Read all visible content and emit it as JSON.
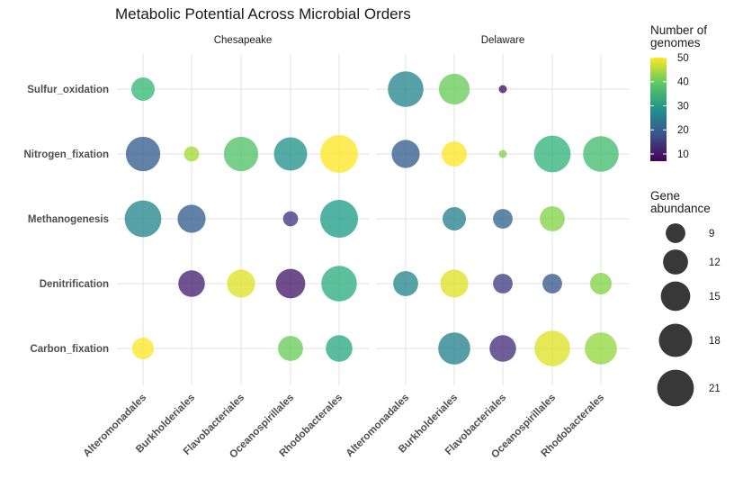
{
  "chart_data": {
    "type": "scatter",
    "title": "Metabolic Potential Across Microbial Orders",
    "facets": [
      "Chesapeake",
      "Delaware"
    ],
    "orders": [
      "Alteromonadales",
      "Burkholderiales",
      "Flavobacteriales",
      "Oceanospirillales",
      "Rhodobacterales"
    ],
    "pathways": [
      "Sulfur_oxidation",
      "Nitrogen_fixation",
      "Methanogenesis",
      "Denitrification",
      "Carbon_fixation"
    ],
    "points": [
      {
        "facet": "Chesapeake",
        "order": "Alteromonadales",
        "pathway": "Sulfur_oxidation",
        "genomes": 36,
        "abundance": 11
      },
      {
        "facet": "Chesapeake",
        "order": "Alteromonadales",
        "pathway": "Nitrogen_fixation",
        "genomes": 20,
        "abundance": 19
      },
      {
        "facet": "Chesapeake",
        "order": "Alteromonadales",
        "pathway": "Methanogenesis",
        "genomes": 27,
        "abundance": 21
      },
      {
        "facet": "Chesapeake",
        "order": "Alteromonadales",
        "pathway": "Carbon_fixation",
        "genomes": 50,
        "abundance": 10
      },
      {
        "facet": "Chesapeake",
        "order": "Burkholderiales",
        "pathway": "Nitrogen_fixation",
        "genomes": 44,
        "abundance": 7
      },
      {
        "facet": "Chesapeake",
        "order": "Burkholderiales",
        "pathway": "Methanogenesis",
        "genomes": 20,
        "abundance": 14
      },
      {
        "facet": "Chesapeake",
        "order": "Burkholderiales",
        "pathway": "Denitrification",
        "genomes": 11,
        "abundance": 13
      },
      {
        "facet": "Chesapeake",
        "order": "Flavobacteriales",
        "pathway": "Nitrogen_fixation",
        "genomes": 38,
        "abundance": 19
      },
      {
        "facet": "Chesapeake",
        "order": "Flavobacteriales",
        "pathway": "Denitrification",
        "genomes": 48,
        "abundance": 14
      },
      {
        "facet": "Chesapeake",
        "order": "Oceanospirillales",
        "pathway": "Nitrogen_fixation",
        "genomes": 29,
        "abundance": 18
      },
      {
        "facet": "Chesapeake",
        "order": "Oceanospirillales",
        "pathway": "Methanogenesis",
        "genomes": 14,
        "abundance": 7
      },
      {
        "facet": "Chesapeake",
        "order": "Oceanospirillales",
        "pathway": "Denitrification",
        "genomes": 10,
        "abundance": 15
      },
      {
        "facet": "Chesapeake",
        "order": "Oceanospirillales",
        "pathway": "Carbon_fixation",
        "genomes": 40,
        "abundance": 12
      },
      {
        "facet": "Chesapeake",
        "order": "Rhodobacterales",
        "pathway": "Nitrogen_fixation",
        "genomes": 50,
        "abundance": 22
      },
      {
        "facet": "Chesapeake",
        "order": "Rhodobacterales",
        "pathway": "Methanogenesis",
        "genomes": 31,
        "abundance": 22
      },
      {
        "facet": "Chesapeake",
        "order": "Rhodobacterales",
        "pathway": "Denitrification",
        "genomes": 34,
        "abundance": 20
      },
      {
        "facet": "Chesapeake",
        "order": "Rhodobacterales",
        "pathway": "Carbon_fixation",
        "genomes": 33,
        "abundance": 13
      },
      {
        "facet": "Delaware",
        "order": "Alteromonadales",
        "pathway": "Sulfur_oxidation",
        "genomes": 27,
        "abundance": 20
      },
      {
        "facet": "Delaware",
        "order": "Alteromonadales",
        "pathway": "Nitrogen_fixation",
        "genomes": 20,
        "abundance": 14
      },
      {
        "facet": "Delaware",
        "order": "Alteromonadales",
        "pathway": "Denitrification",
        "genomes": 27,
        "abundance": 12
      },
      {
        "facet": "Delaware",
        "order": "Burkholderiales",
        "pathway": "Sulfur_oxidation",
        "genomes": 40,
        "abundance": 16
      },
      {
        "facet": "Delaware",
        "order": "Burkholderiales",
        "pathway": "Nitrogen_fixation",
        "genomes": 50,
        "abundance": 12
      },
      {
        "facet": "Delaware",
        "order": "Burkholderiales",
        "pathway": "Methanogenesis",
        "genomes": 26,
        "abundance": 11
      },
      {
        "facet": "Delaware",
        "order": "Burkholderiales",
        "pathway": "Denitrification",
        "genomes": 48,
        "abundance": 14
      },
      {
        "facet": "Delaware",
        "order": "Burkholderiales",
        "pathway": "Carbon_fixation",
        "genomes": 26,
        "abundance": 17
      },
      {
        "facet": "Delaware",
        "order": "Flavobacteriales",
        "pathway": "Sulfur_oxidation",
        "genomes": 9,
        "abundance": 5
      },
      {
        "facet": "Delaware",
        "order": "Flavobacteriales",
        "pathway": "Nitrogen_fixation",
        "genomes": 42,
        "abundance": 5
      },
      {
        "facet": "Delaware",
        "order": "Flavobacteriales",
        "pathway": "Methanogenesis",
        "genomes": 21,
        "abundance": 9
      },
      {
        "facet": "Delaware",
        "order": "Flavobacteriales",
        "pathway": "Denitrification",
        "genomes": 15,
        "abundance": 9
      },
      {
        "facet": "Delaware",
        "order": "Flavobacteriales",
        "pathway": "Carbon_fixation",
        "genomes": 13,
        "abundance": 13
      },
      {
        "facet": "Delaware",
        "order": "Oceanospirillales",
        "pathway": "Nitrogen_fixation",
        "genomes": 35,
        "abundance": 21
      },
      {
        "facet": "Delaware",
        "order": "Oceanospirillales",
        "pathway": "Methanogenesis",
        "genomes": 42,
        "abundance": 12
      },
      {
        "facet": "Delaware",
        "order": "Oceanospirillales",
        "pathway": "Denitrification",
        "genomes": 19,
        "abundance": 9
      },
      {
        "facet": "Delaware",
        "order": "Oceanospirillales",
        "pathway": "Carbon_fixation",
        "genomes": 48,
        "abundance": 20
      },
      {
        "facet": "Delaware",
        "order": "Rhodobacterales",
        "pathway": "Nitrogen_fixation",
        "genomes": 37,
        "abundance": 20
      },
      {
        "facet": "Delaware",
        "order": "Rhodobacterales",
        "pathway": "Denitrification",
        "genomes": 42,
        "abundance": 10
      },
      {
        "facet": "Delaware",
        "order": "Rhodobacterales",
        "pathway": "Carbon_fixation",
        "genomes": 43,
        "abundance": 17
      }
    ],
    "color_legend": {
      "title": "Number of genomes",
      "title_lines": [
        "Number of",
        "genomes"
      ],
      "breaks": [
        10,
        20,
        30,
        40,
        50
      ],
      "range": [
        7,
        50
      ]
    },
    "size_legend": {
      "title": "Gene abundance",
      "title_lines": [
        "Gene",
        "abundance"
      ],
      "breaks": [
        9,
        12,
        15,
        18,
        21
      ],
      "range": [
        5,
        22
      ]
    }
  }
}
